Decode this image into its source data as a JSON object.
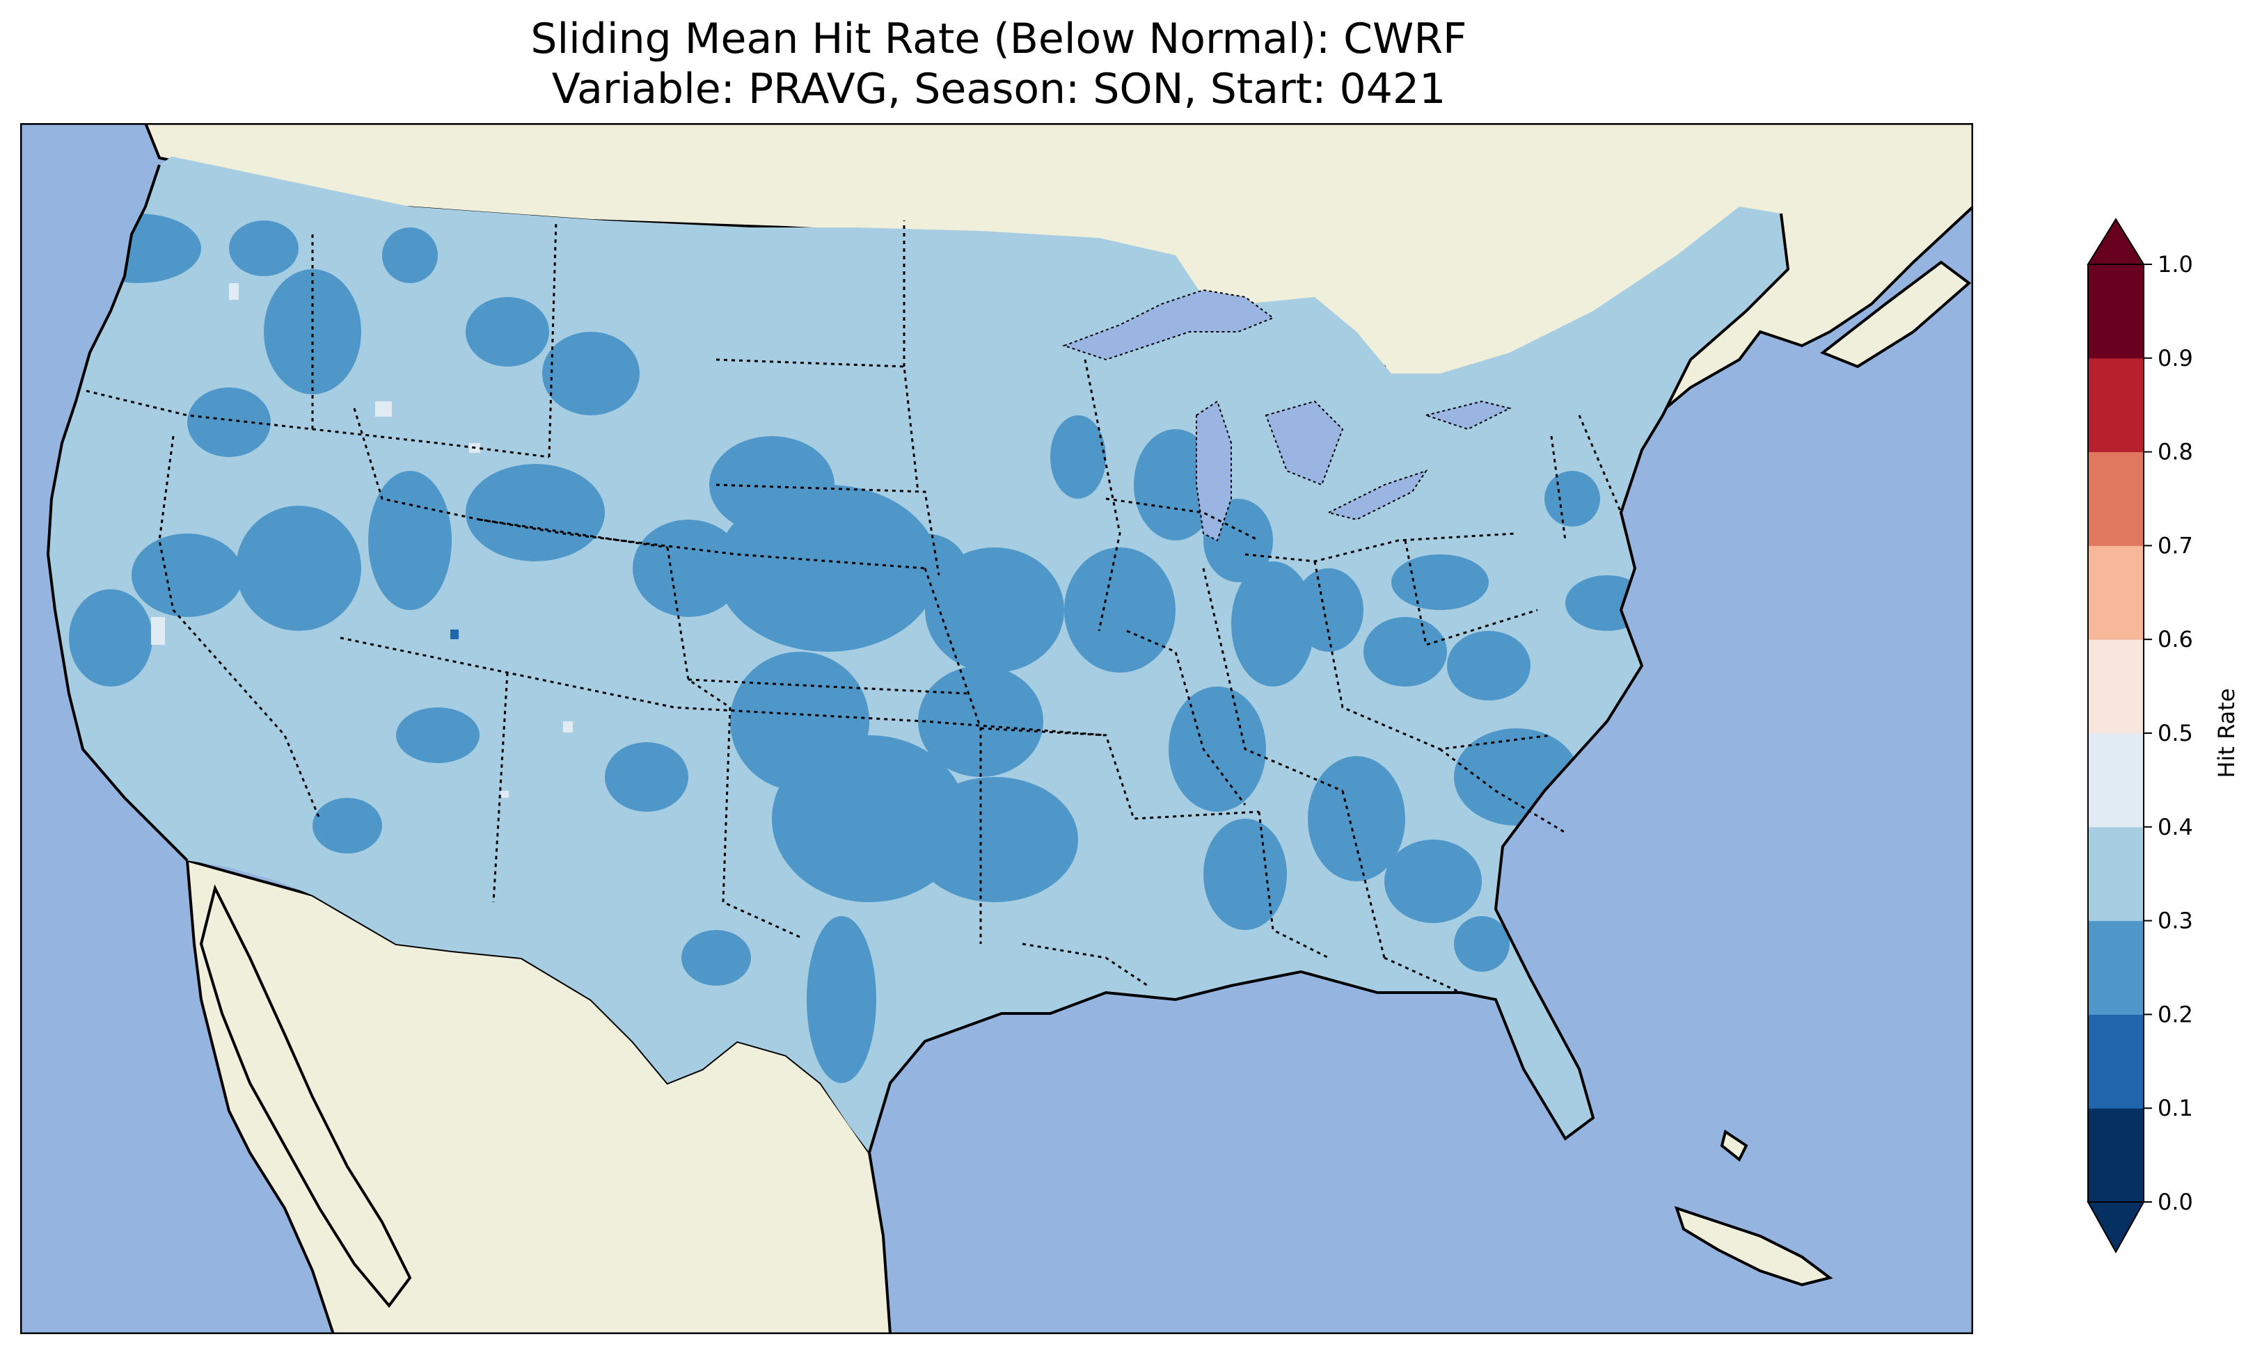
{
  "title": {
    "line1": "Sliding Mean Hit Rate (Below Normal): CWRF",
    "line2": "Variable: PRAVG, Season: SON, Start: 0421"
  },
  "colors": {
    "ocean": "#95b4e0",
    "land_outside": "#f0efdc",
    "lakes": "#9ab5e2",
    "coast": "#000000",
    "border": "#000000"
  },
  "map_data": {
    "region": "Contiguous United States",
    "projection": "Lambert Conformal",
    "dominant_class": "0.3-0.4",
    "secondary_class": "0.2-0.3",
    "rare_classes": [
      "0.4-0.5",
      "0.1-0.2"
    ]
  },
  "colorbar": {
    "label": "Hit Rate",
    "ticks": [
      "0.0",
      "0.1",
      "0.2",
      "0.3",
      "0.4",
      "0.5",
      "0.6",
      "0.7",
      "0.8",
      "0.9",
      "1.0"
    ],
    "colors": [
      "#053061",
      "#2166ac",
      "#4393c3",
      "#92c5de",
      "#d1e5f0",
      "#fddbc7",
      "#f4a582",
      "#d6604d",
      "#b2182b",
      "#67001f"
    ],
    "under_color": "#053061",
    "over_color": "#67001f",
    "class_colors": [
      "#053061",
      "#2166ac",
      "#4f97c9",
      "#a6cde2",
      "#e1ebf3",
      "#f8e6dc",
      "#f6b899",
      "#e07860",
      "#b8202e",
      "#6a0020"
    ]
  }
}
